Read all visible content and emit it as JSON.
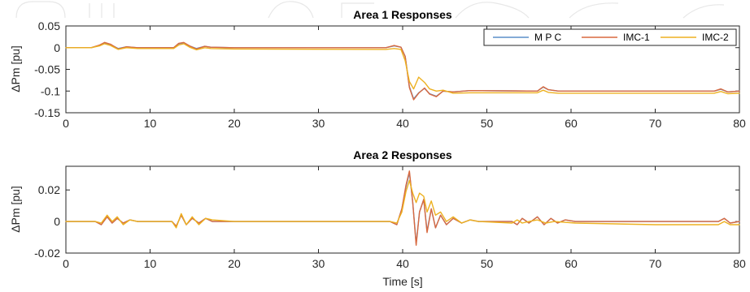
{
  "chart_data": [
    {
      "type": "line",
      "title": "Area 1 Responses",
      "xlabel": "",
      "ylabel": "ΔPm [pu]",
      "xlim": [
        0,
        80
      ],
      "ylim": [
        -0.15,
        0.05
      ],
      "xticks": [
        0,
        10,
        20,
        30,
        40,
        50,
        60,
        70,
        80
      ],
      "yticks": [
        -0.15,
        -0.1,
        -0.05,
        0,
        0.05
      ],
      "ytick_labels": [
        "-0.15",
        "-0.1",
        "-0.05",
        "0",
        "0.05"
      ],
      "legend": "top-right",
      "grid": false,
      "series": [
        {
          "name": "M P C",
          "color": "#5b8fc9",
          "points": [
            [
              0,
              0
            ],
            [
              3,
              0
            ],
            [
              4,
              0.005
            ],
            [
              4.6,
              0.011
            ],
            [
              5.3,
              0.007
            ],
            [
              6.2,
              -0.002
            ],
            [
              7.2,
              0.002
            ],
            [
              8.5,
              0
            ],
            [
              12.8,
              0
            ],
            [
              13.4,
              0.009
            ],
            [
              14,
              0.011
            ],
            [
              14.7,
              0.004
            ],
            [
              15.5,
              -0.002
            ],
            [
              16.5,
              0.003
            ],
            [
              17.2,
              0.001
            ],
            [
              20,
              0
            ],
            [
              38,
              0
            ],
            [
              39,
              0.004
            ],
            [
              39.8,
              0.001
            ],
            [
              40.3,
              -0.02
            ],
            [
              40.8,
              -0.09
            ],
            [
              41.3,
              -0.118
            ],
            [
              41.9,
              -0.104
            ],
            [
              42.6,
              -0.094
            ],
            [
              43.2,
              -0.106
            ],
            [
              44,
              -0.112
            ],
            [
              44.8,
              -0.1
            ],
            [
              46,
              -0.102
            ],
            [
              48,
              -0.099
            ],
            [
              56,
              -0.1
            ],
            [
              56.7,
              -0.091
            ],
            [
              57.3,
              -0.097
            ],
            [
              58.5,
              -0.1
            ],
            [
              77,
              -0.1
            ],
            [
              77.8,
              -0.096
            ],
            [
              78.6,
              -0.102
            ],
            [
              80,
              -0.1
            ]
          ]
        },
        {
          "name": "IMC-1",
          "color": "#d9693f",
          "points": [
            [
              0,
              0
            ],
            [
              3,
              0
            ],
            [
              4,
              0.006
            ],
            [
              4.6,
              0.012
            ],
            [
              5.3,
              0.008
            ],
            [
              6.2,
              -0.003
            ],
            [
              7.2,
              0.002
            ],
            [
              8.5,
              0
            ],
            [
              12.8,
              0
            ],
            [
              13.4,
              0.01
            ],
            [
              14,
              0.012
            ],
            [
              14.7,
              0.004
            ],
            [
              15.5,
              -0.003
            ],
            [
              16.5,
              0.003
            ],
            [
              17.2,
              0.001
            ],
            [
              20,
              0
            ],
            [
              38,
              0
            ],
            [
              39,
              0.005
            ],
            [
              39.8,
              0.001
            ],
            [
              40.3,
              -0.02
            ],
            [
              40.8,
              -0.092
            ],
            [
              41.3,
              -0.12
            ],
            [
              41.9,
              -0.105
            ],
            [
              42.6,
              -0.093
            ],
            [
              43.2,
              -0.107
            ],
            [
              44,
              -0.113
            ],
            [
              44.8,
              -0.1
            ],
            [
              46,
              -0.102
            ],
            [
              48,
              -0.099
            ],
            [
              56,
              -0.1
            ],
            [
              56.7,
              -0.09
            ],
            [
              57.3,
              -0.097
            ],
            [
              58.5,
              -0.1
            ],
            [
              77,
              -0.1
            ],
            [
              77.8,
              -0.095
            ],
            [
              78.6,
              -0.102
            ],
            [
              80,
              -0.1
            ]
          ]
        },
        {
          "name": "IMC-2",
          "color": "#edb120",
          "points": [
            [
              0,
              0
            ],
            [
              3,
              0
            ],
            [
              4,
              0.004
            ],
            [
              4.6,
              0.009
            ],
            [
              5.3,
              0.005
            ],
            [
              6.2,
              -0.004
            ],
            [
              7.2,
              0
            ],
            [
              8.5,
              -0.002
            ],
            [
              12.8,
              -0.002
            ],
            [
              13.4,
              0.006
            ],
            [
              14,
              0.009
            ],
            [
              14.7,
              0.001
            ],
            [
              15.5,
              -0.005
            ],
            [
              16.5,
              0
            ],
            [
              17.2,
              -0.002
            ],
            [
              20,
              -0.003
            ],
            [
              38,
              -0.004
            ],
            [
              39,
              -0.002
            ],
            [
              39.8,
              -0.004
            ],
            [
              40.3,
              -0.03
            ],
            [
              40.8,
              -0.078
            ],
            [
              41.3,
              -0.095
            ],
            [
              41.9,
              -0.068
            ],
            [
              42.6,
              -0.08
            ],
            [
              43.2,
              -0.095
            ],
            [
              44,
              -0.1
            ],
            [
              44.8,
              -0.098
            ],
            [
              46,
              -0.105
            ],
            [
              48,
              -0.104
            ],
            [
              56,
              -0.104
            ],
            [
              56.7,
              -0.098
            ],
            [
              57.3,
              -0.103
            ],
            [
              58.5,
              -0.105
            ],
            [
              77,
              -0.105
            ],
            [
              77.8,
              -0.101
            ],
            [
              78.6,
              -0.106
            ],
            [
              80,
              -0.105
            ]
          ]
        }
      ]
    },
    {
      "type": "line",
      "title": "Area 2 Responses",
      "xlabel": "Time [s]",
      "ylabel": "ΔPm [pu]",
      "xlim": [
        0,
        80
      ],
      "ylim": [
        -0.02,
        0.035
      ],
      "xticks": [
        0,
        10,
        20,
        30,
        40,
        50,
        60,
        70,
        80
      ],
      "yticks": [
        -0.02,
        0,
        0.02
      ],
      "ytick_labels": [
        "-0.02",
        "0",
        "0.02"
      ],
      "grid": false,
      "series": [
        {
          "name": "M P C",
          "color": "#5b8fc9",
          "points": [
            [
              0,
              0
            ],
            [
              3.5,
              0
            ],
            [
              4.2,
              -0.002
            ],
            [
              4.9,
              0.003
            ],
            [
              5.5,
              -0.001
            ],
            [
              6.1,
              0.002
            ],
            [
              6.8,
              -0.001
            ],
            [
              7.6,
              0.001
            ],
            [
              8.5,
              0
            ],
            [
              12.6,
              0
            ],
            [
              13.1,
              -0.003
            ],
            [
              13.7,
              0.004
            ],
            [
              14.3,
              -0.002
            ],
            [
              15,
              0.002
            ],
            [
              15.8,
              -0.001
            ],
            [
              16.6,
              0.002
            ],
            [
              17.4,
              0
            ],
            [
              20,
              0
            ],
            [
              38.5,
              0
            ],
            [
              39.3,
              -0.002
            ],
            [
              39.9,
              0.008
            ],
            [
              40.4,
              0.022
            ],
            [
              40.8,
              0.031
            ],
            [
              41.2,
              0.012
            ],
            [
              41.6,
              -0.014
            ],
            [
              42,
              0.006
            ],
            [
              42.5,
              0.014
            ],
            [
              42.9,
              -0.006
            ],
            [
              43.4,
              0.008
            ],
            [
              43.9,
              -0.004
            ],
            [
              44.5,
              0.004
            ],
            [
              45.2,
              -0.002
            ],
            [
              46,
              0.002
            ],
            [
              47,
              -0.001
            ],
            [
              48,
              0.001
            ],
            [
              49,
              0
            ],
            [
              53,
              0
            ],
            [
              53.6,
              -0.002
            ],
            [
              54.2,
              0.002
            ],
            [
              55,
              -0.001
            ],
            [
              56,
              0.003
            ],
            [
              56.8,
              -0.002
            ],
            [
              57.6,
              0.002
            ],
            [
              58.4,
              -0.001
            ],
            [
              59.3,
              0.001
            ],
            [
              60.5,
              0
            ],
            [
              77.5,
              0
            ],
            [
              78.2,
              0.002
            ],
            [
              78.9,
              -0.001
            ],
            [
              80,
              0
            ]
          ]
        },
        {
          "name": "IMC-1",
          "color": "#d9693f",
          "points": [
            [
              0,
              0
            ],
            [
              3.5,
              0
            ],
            [
              4.2,
              -0.002
            ],
            [
              4.9,
              0.003
            ],
            [
              5.5,
              -0.001
            ],
            [
              6.1,
              0.002
            ],
            [
              6.8,
              -0.001
            ],
            [
              7.6,
              0.001
            ],
            [
              8.5,
              0
            ],
            [
              12.6,
              0
            ],
            [
              13.1,
              -0.003
            ],
            [
              13.7,
              0.004
            ],
            [
              14.3,
              -0.002
            ],
            [
              15,
              0.002
            ],
            [
              15.8,
              -0.001
            ],
            [
              16.6,
              0.002
            ],
            [
              17.4,
              0
            ],
            [
              20,
              0
            ],
            [
              38.5,
              0
            ],
            [
              39.3,
              -0.002
            ],
            [
              39.9,
              0.008
            ],
            [
              40.4,
              0.023
            ],
            [
              40.8,
              0.032
            ],
            [
              41.2,
              0.012
            ],
            [
              41.6,
              -0.015
            ],
            [
              42,
              0.006
            ],
            [
              42.5,
              0.014
            ],
            [
              42.9,
              -0.007
            ],
            [
              43.4,
              0.008
            ],
            [
              43.9,
              -0.004
            ],
            [
              44.5,
              0.004
            ],
            [
              45.2,
              -0.002
            ],
            [
              46,
              0.002
            ],
            [
              47,
              -0.001
            ],
            [
              48,
              0.001
            ],
            [
              49,
              0
            ],
            [
              53,
              0
            ],
            [
              53.6,
              -0.002
            ],
            [
              54.2,
              0.002
            ],
            [
              55,
              -0.001
            ],
            [
              56,
              0.003
            ],
            [
              56.8,
              -0.002
            ],
            [
              57.6,
              0.002
            ],
            [
              58.4,
              -0.001
            ],
            [
              59.3,
              0.001
            ],
            [
              60.5,
              0
            ],
            [
              77.5,
              0
            ],
            [
              78.2,
              0.002
            ],
            [
              78.9,
              -0.001
            ],
            [
              80,
              0
            ]
          ]
        },
        {
          "name": "IMC-2",
          "color": "#edb120",
          "points": [
            [
              0,
              0
            ],
            [
              3.5,
              0
            ],
            [
              4.2,
              -0.001
            ],
            [
              4.9,
              0.004
            ],
            [
              5.5,
              0
            ],
            [
              6.1,
              0.003
            ],
            [
              6.8,
              -0.002
            ],
            [
              7.6,
              0.001
            ],
            [
              8.5,
              0
            ],
            [
              12.6,
              0
            ],
            [
              13.1,
              -0.004
            ],
            [
              13.7,
              0.005
            ],
            [
              14.3,
              -0.002
            ],
            [
              15,
              0.003
            ],
            [
              15.8,
              -0.002
            ],
            [
              16.6,
              0.002
            ],
            [
              17.4,
              0.001
            ],
            [
              20,
              0
            ],
            [
              38.5,
              0
            ],
            [
              39.3,
              -0.001
            ],
            [
              39.9,
              0.006
            ],
            [
              40.4,
              0.019
            ],
            [
              40.8,
              0.026
            ],
            [
              41.2,
              0.018
            ],
            [
              41.6,
              0.012
            ],
            [
              42,
              0.018
            ],
            [
              42.5,
              0.016
            ],
            [
              42.9,
              0.006
            ],
            [
              43.4,
              0.013
            ],
            [
              43.9,
              0.004
            ],
            [
              44.5,
              0.006
            ],
            [
              45.2,
              0
            ],
            [
              46,
              0.003
            ],
            [
              47,
              -0.001
            ],
            [
              48,
              0.001
            ],
            [
              49,
              0
            ],
            [
              53,
              -0.001
            ],
            [
              53.6,
              0.001
            ],
            [
              54.2,
              -0.001
            ],
            [
              55,
              0
            ],
            [
              56,
              0.001
            ],
            [
              57,
              -0.001
            ],
            [
              58,
              0
            ],
            [
              60.5,
              -0.001
            ],
            [
              70,
              -0.002
            ],
            [
              77.5,
              -0.002
            ],
            [
              78.2,
              0
            ],
            [
              78.9,
              -0.002
            ],
            [
              80,
              -0.002
            ]
          ]
        }
      ]
    }
  ]
}
